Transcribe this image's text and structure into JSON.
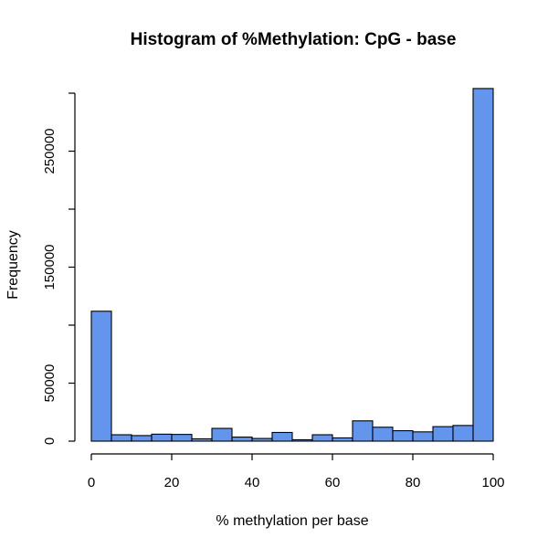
{
  "chart_data": {
    "type": "bar",
    "title": "Histogram of %Methylation: CpG - base",
    "xlabel": "% methylation per base",
    "ylabel": "Frequency",
    "bin_edges": [
      0,
      5,
      10,
      15,
      20,
      25,
      30,
      35,
      40,
      45,
      50,
      55,
      60,
      65,
      70,
      75,
      80,
      85,
      90,
      95,
      100
    ],
    "values": [
      112000,
      5500,
      4800,
      6000,
      5800,
      2000,
      11000,
      3500,
      2300,
      7500,
      1200,
      5500,
      2800,
      17500,
      12000,
      9000,
      8000,
      12500,
      13500,
      304000
    ],
    "xlim": [
      0,
      100
    ],
    "ylim": [
      0,
      300000
    ],
    "x_ticks": [
      0,
      20,
      40,
      60,
      80,
      100
    ],
    "x_tick_labels": [
      "0",
      "20",
      "40",
      "60",
      "80",
      "100"
    ],
    "y_ticks": [
      0,
      50000,
      150000,
      250000
    ],
    "y_tick_labels": [
      "0",
      "50000",
      "150000",
      "250000"
    ],
    "y_minor_ticks": [
      100000,
      200000,
      300000
    ],
    "bar_color": "#6495ed",
    "edge_color": "#000000",
    "grid": false,
    "legend": "none"
  }
}
